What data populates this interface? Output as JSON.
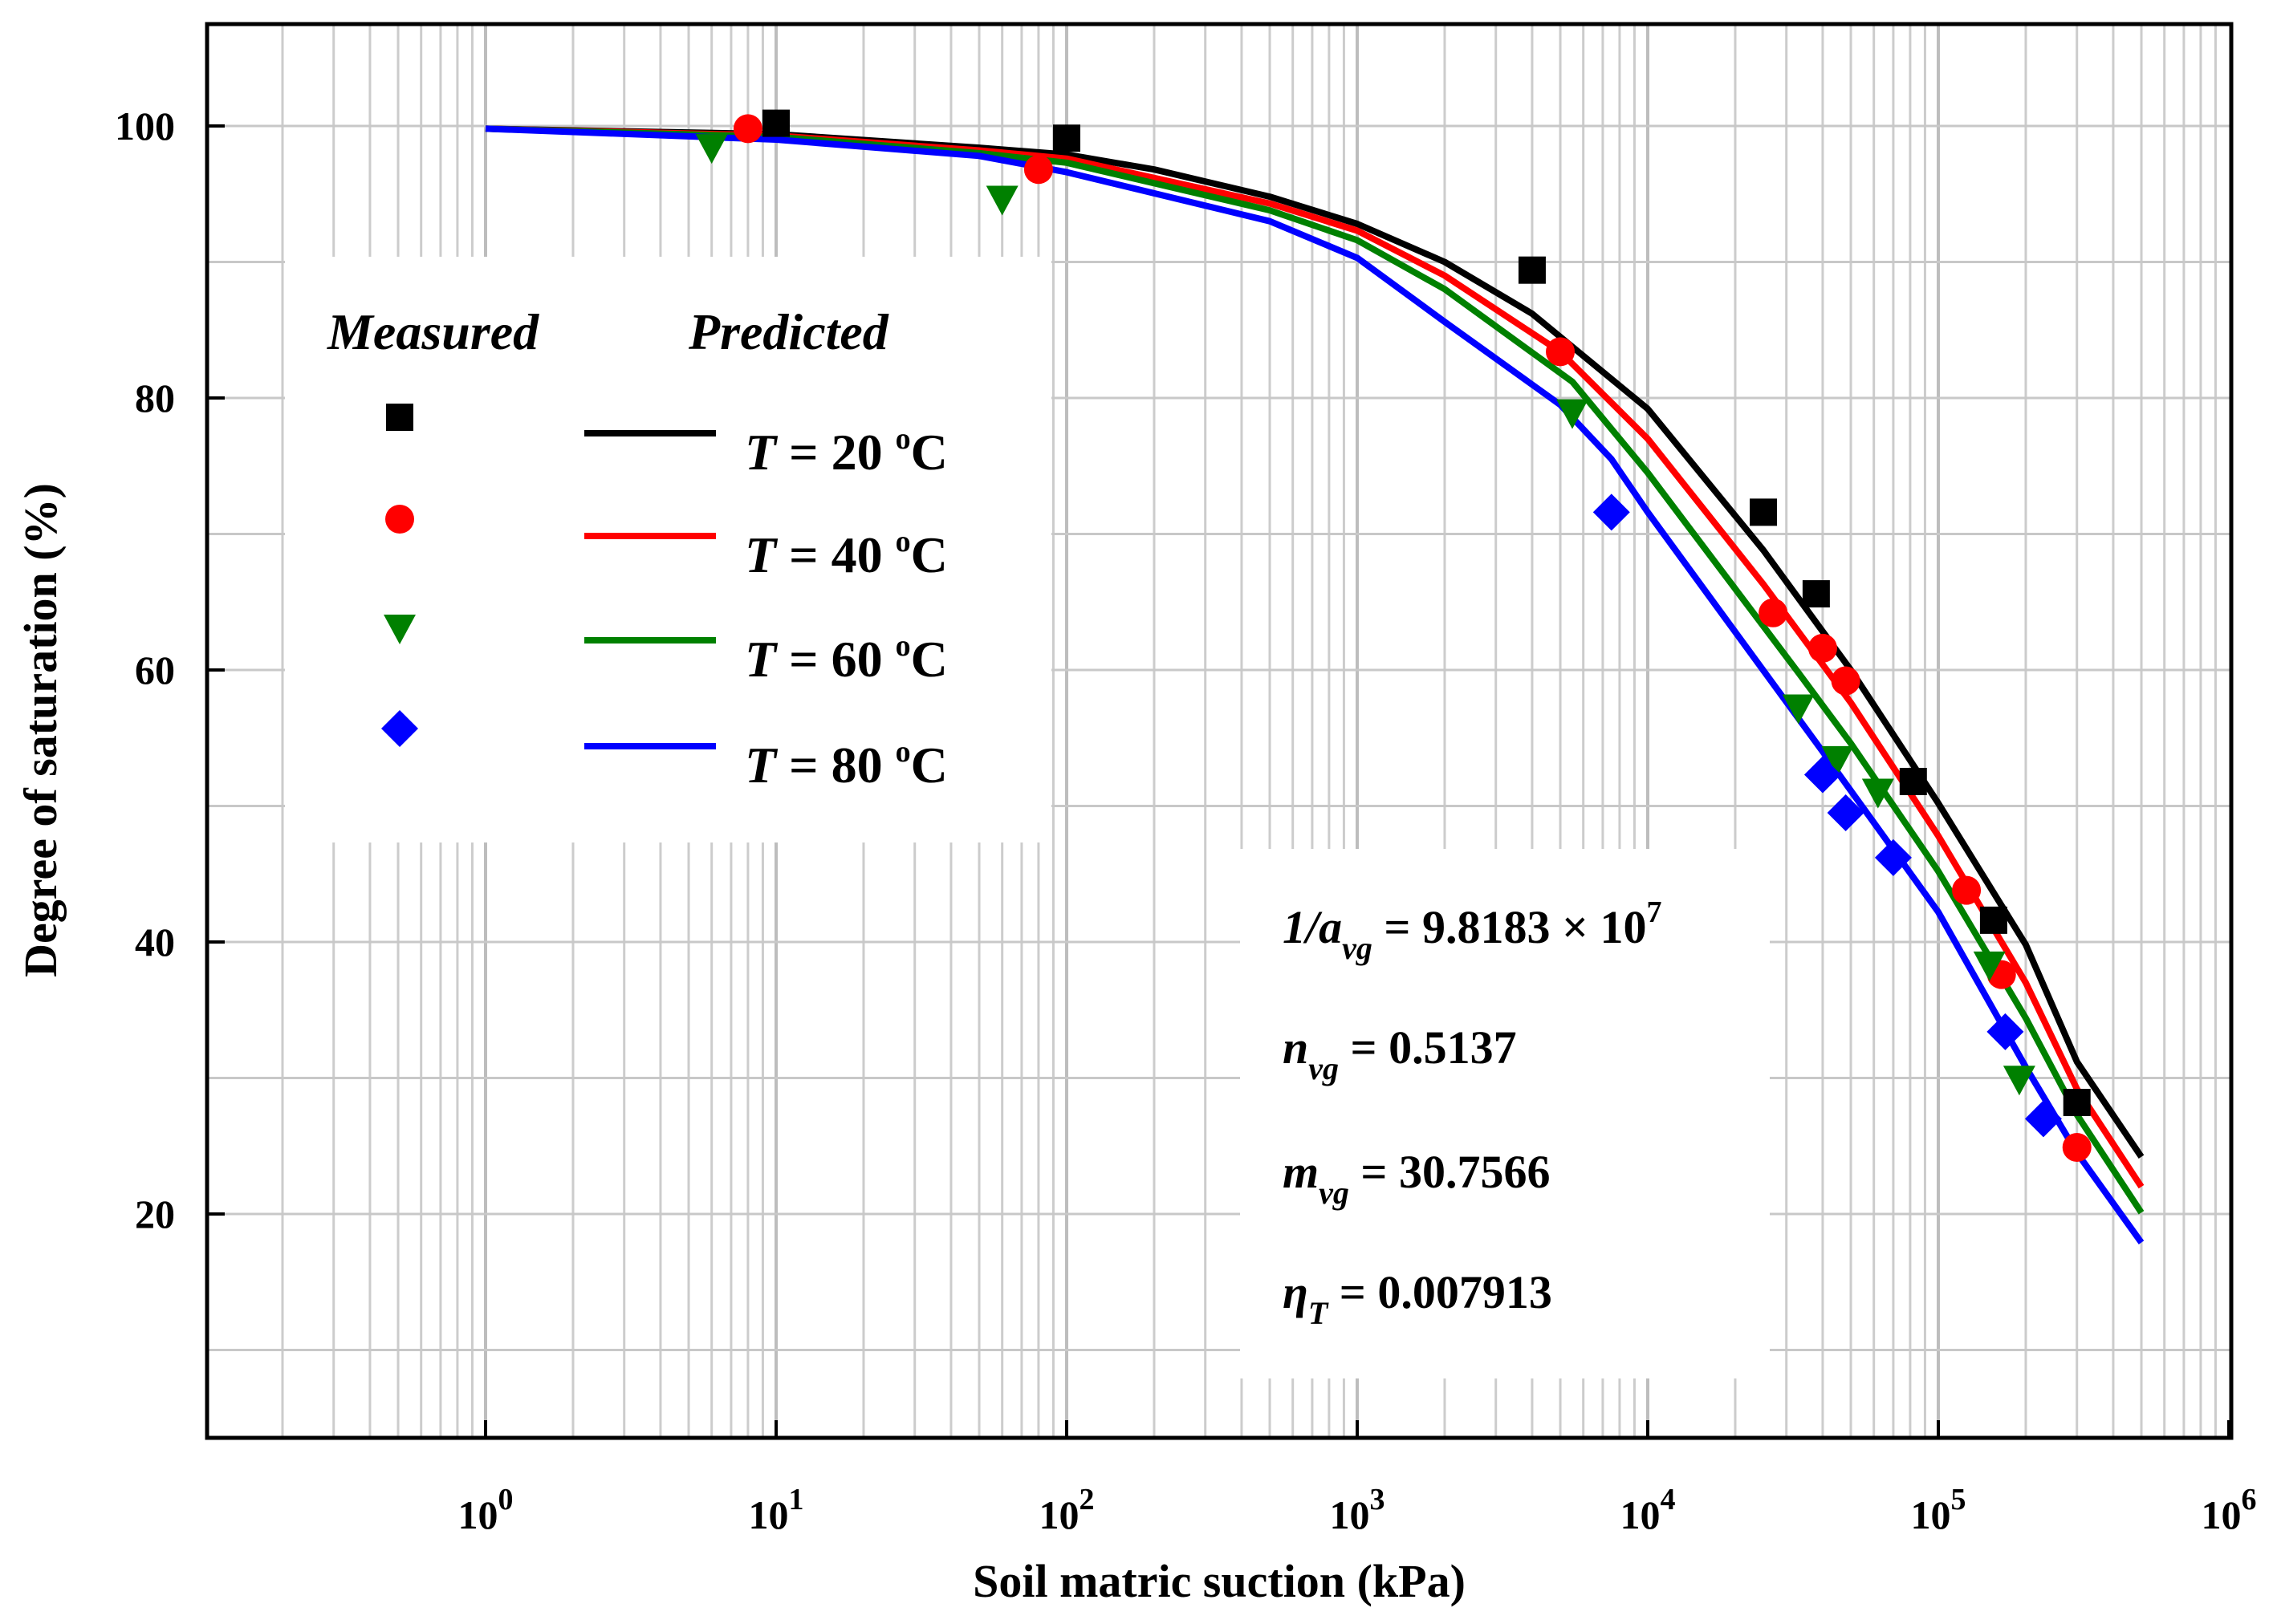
{
  "chart_data": {
    "type": "line",
    "title": "",
    "xlabel": "Soil matric suction (kPa)",
    "ylabel": "Degree of saturation (%)",
    "xscale": "log",
    "xlim": [
      0.1,
      1000000
    ],
    "ylim": [
      5,
      105
    ],
    "grid": true,
    "x_ticks": [
      {
        "value": 1,
        "base": "10",
        "exp": "0"
      },
      {
        "value": 10,
        "base": "10",
        "exp": "1"
      },
      {
        "value": 100,
        "base": "10",
        "exp": "2"
      },
      {
        "value": 1000,
        "base": "10",
        "exp": "3"
      },
      {
        "value": 10000,
        "base": "10",
        "exp": "4"
      },
      {
        "value": 100000,
        "base": "10",
        "exp": "5"
      },
      {
        "value": 1000000,
        "base": "10",
        "exp": "6"
      }
    ],
    "y_ticks": [
      {
        "value": 20,
        "label": "20"
      },
      {
        "value": 40,
        "label": "40"
      },
      {
        "value": 60,
        "label": "60"
      },
      {
        "value": 80,
        "label": "80"
      },
      {
        "value": 100,
        "label": "100"
      }
    ],
    "legend": {
      "placement": "top-left",
      "measured_header": "Measured",
      "predicted_header": "Predicted"
    },
    "series": [
      {
        "name": "T = 20 oC",
        "t_symbol": "T",
        "eq": "=",
        "t_value": "20",
        "degree": "o",
        "unit": "C",
        "color": "#000000",
        "marker": "square",
        "measured": [
          [
            10,
            100.2
          ],
          [
            100,
            99.1
          ],
          [
            4000,
            89.4
          ],
          [
            25000,
            71.6
          ],
          [
            38000,
            65.6
          ],
          [
            82000,
            51.8
          ],
          [
            155000,
            41.6
          ],
          [
            300000,
            28.2
          ]
        ],
        "predicted": [
          [
            1,
            99.8
          ],
          [
            10,
            99.4
          ],
          [
            50,
            98.4
          ],
          [
            100,
            97.9
          ],
          [
            200,
            96.8
          ],
          [
            500,
            94.8
          ],
          [
            1000,
            92.8
          ],
          [
            2000,
            90.0
          ],
          [
            4000,
            86.2
          ],
          [
            10000,
            79.2
          ],
          [
            25000,
            68.8
          ],
          [
            50000,
            60.0
          ],
          [
            100000,
            50.2
          ],
          [
            200000,
            39.8
          ],
          [
            300000,
            31.2
          ],
          [
            500000,
            24.2
          ]
        ]
      },
      {
        "name": "T = 40 oC",
        "t_symbol": "T",
        "eq": "=",
        "t_value": "40",
        "degree": "o",
        "unit": "C",
        "color": "#ff0000",
        "marker": "circle",
        "measured": [
          [
            8,
            99.8
          ],
          [
            80,
            96.8
          ],
          [
            5000,
            83.4
          ],
          [
            27000,
            64.2
          ],
          [
            40000,
            61.6
          ],
          [
            48000,
            59.2
          ],
          [
            125000,
            43.8
          ],
          [
            165000,
            37.6
          ],
          [
            300000,
            24.9
          ]
        ],
        "predicted": [
          [
            1,
            99.8
          ],
          [
            10,
            99.3
          ],
          [
            50,
            98.2
          ],
          [
            100,
            97.6
          ],
          [
            500,
            94.3
          ],
          [
            1000,
            92.3
          ],
          [
            2000,
            89.0
          ],
          [
            5000,
            83.4
          ],
          [
            10000,
            77.0
          ],
          [
            25000,
            66.3
          ],
          [
            50000,
            57.6
          ],
          [
            100000,
            47.8
          ],
          [
            200000,
            37.0
          ],
          [
            300000,
            29.2
          ],
          [
            500000,
            22.0
          ]
        ]
      },
      {
        "name": "T = 60 oC",
        "t_symbol": "T",
        "eq": "=",
        "t_value": "60",
        "degree": "o",
        "unit": "C",
        "color": "#008000",
        "marker": "triangle-down",
        "measured": [
          [
            6,
            98.4
          ],
          [
            60,
            94.6
          ],
          [
            5500,
            78.9
          ],
          [
            33000,
            57.2
          ],
          [
            45000,
            53.4
          ],
          [
            62000,
            51.0
          ],
          [
            150000,
            38.3
          ],
          [
            190000,
            29.9
          ]
        ],
        "predicted": [
          [
            1,
            99.8
          ],
          [
            10,
            99.2
          ],
          [
            50,
            98.0
          ],
          [
            100,
            97.3
          ],
          [
            500,
            93.8
          ],
          [
            1000,
            91.6
          ],
          [
            2000,
            88.0
          ],
          [
            5500,
            81.2
          ],
          [
            10000,
            74.5
          ],
          [
            33000,
            59.8
          ],
          [
            50000,
            54.6
          ],
          [
            100000,
            45.2
          ],
          [
            200000,
            34.4
          ],
          [
            300000,
            27.3
          ],
          [
            500000,
            20.1
          ]
        ]
      },
      {
        "name": "T = 80 oC",
        "t_symbol": "T",
        "eq": "=",
        "t_value": "80",
        "degree": "o",
        "unit": "C",
        "color": "#0000ff",
        "marker": "diamond",
        "measured": [
          [
            7500,
            71.6
          ],
          [
            40000,
            52.3
          ],
          [
            48000,
            49.5
          ],
          [
            70000,
            46.2
          ],
          [
            170000,
            33.4
          ],
          [
            230000,
            27.0
          ]
        ],
        "predicted": [
          [
            1,
            99.8
          ],
          [
            10,
            99.0
          ],
          [
            50,
            97.8
          ],
          [
            100,
            96.6
          ],
          [
            500,
            93.0
          ],
          [
            1000,
            90.3
          ],
          [
            2000,
            85.6
          ],
          [
            5000,
            79.5
          ],
          [
            7500,
            75.5
          ],
          [
            10000,
            71.6
          ],
          [
            40000,
            54.0
          ],
          [
            100000,
            42.2
          ],
          [
            200000,
            30.8
          ],
          [
            300000,
            24.5
          ],
          [
            500000,
            17.9
          ]
        ]
      }
    ],
    "parameters": [
      {
        "main": "1/a",
        "sub": "vg",
        "value": " = 9.8183 × 10",
        "sup": "7"
      },
      {
        "main": "n",
        "sub": "vg",
        "value": " = 0.5137",
        "sup": ""
      },
      {
        "main": "m",
        "sub": "vg",
        "value": " = 30.7566",
        "sup": ""
      },
      {
        "main": "η",
        "sub": "T",
        "value": " = 0.007913",
        "sup": ""
      }
    ]
  }
}
